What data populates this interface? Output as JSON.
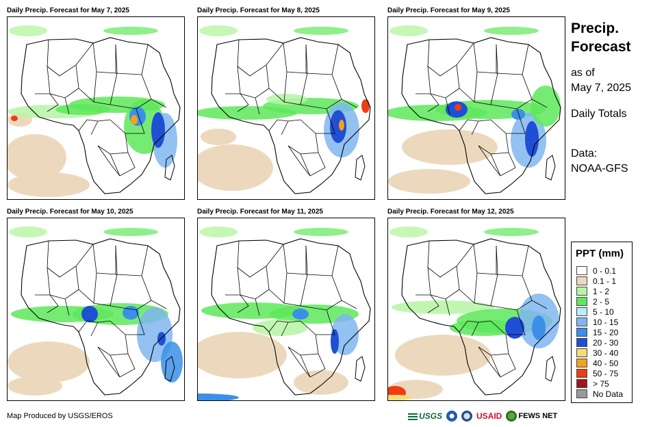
{
  "panels": [
    {
      "title": "Daily Precip. Forecast for May 7, 2025"
    },
    {
      "title": "Daily Precip. Forecast for May 8, 2025"
    },
    {
      "title": "Daily Precip. Forecast for May 9, 2025"
    },
    {
      "title": "Daily Precip. Forecast for May 10, 2025"
    },
    {
      "title": "Daily Precip. Forecast for May 11, 2025"
    },
    {
      "title": "Daily Precip. Forecast for May 12, 2025"
    }
  ],
  "side": {
    "title_line1": "Precip.",
    "title_line2": "Forecast",
    "asof_line1": "as of",
    "asof_line2": "May 7, 2025",
    "totals": "Daily Totals",
    "data_line1": "Data:",
    "data_line2": "NOAA-GFS"
  },
  "legend": {
    "title": "PPT (mm)",
    "items": [
      {
        "label": "0 - 0.1",
        "color": "#ffffff"
      },
      {
        "label": "0.1 - 1",
        "color": "#ecd9bd"
      },
      {
        "label": "1 - 2",
        "color": "#b6f5a4"
      },
      {
        "label": "2 - 5",
        "color": "#5ee85a"
      },
      {
        "label": "5 - 10",
        "color": "#b7eef8"
      },
      {
        "label": "10 - 15",
        "color": "#7fb6f0"
      },
      {
        "label": "15 - 20",
        "color": "#3b8fe8"
      },
      {
        "label": "20 - 30",
        "color": "#1f4fd2"
      },
      {
        "label": "30 - 40",
        "color": "#f5dc7a"
      },
      {
        "label": "40 - 50",
        "color": "#f5a21c"
      },
      {
        "label": "50 - 75",
        "color": "#f03c14"
      },
      {
        "label": "> 75",
        "color": "#a3141c"
      },
      {
        "label": "No Data",
        "color": "#9a9a9a"
      }
    ]
  },
  "footer": {
    "credit": "Map Produced by USGS/EROS"
  },
  "logos": {
    "usgs": "USGS",
    "usaid": "USAID",
    "fewsnet": "FEWS NET"
  }
}
